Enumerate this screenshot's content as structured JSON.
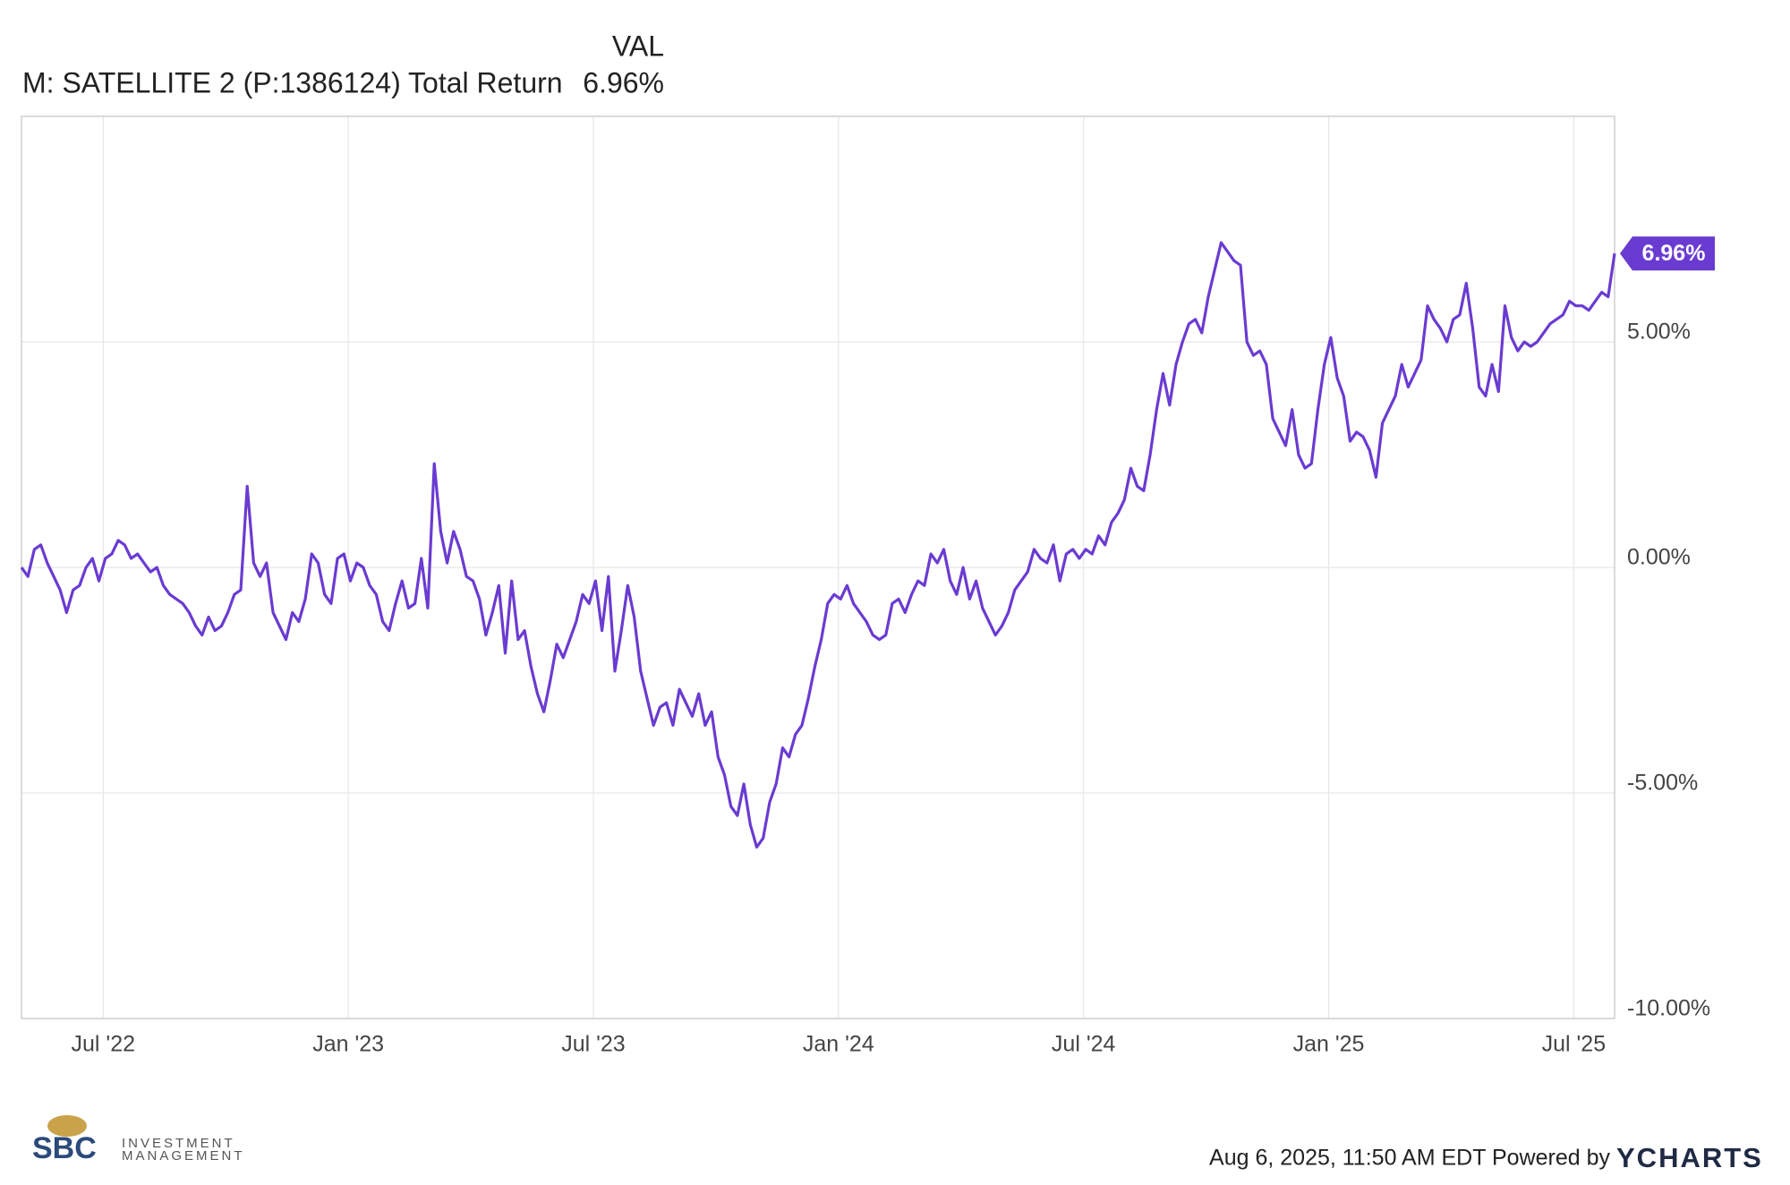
{
  "chart_data": {
    "type": "line",
    "legend": {
      "header": "VAL",
      "last_value": 6.96,
      "last_value_label": "6.96%"
    },
    "xlim": [
      "2022-05",
      "2025-08"
    ],
    "xticks": [
      {
        "value": "2022-07",
        "label": "Jul '22"
      },
      {
        "value": "2023-01",
        "label": "Jan '23"
      },
      {
        "value": "2023-07",
        "label": "Jul '23"
      },
      {
        "value": "2024-01",
        "label": "Jan '24"
      },
      {
        "value": "2024-07",
        "label": "Jul '24"
      },
      {
        "value": "2025-01",
        "label": "Jan '25"
      },
      {
        "value": "2025-07",
        "label": "Jul '25"
      }
    ],
    "ylim": [
      -10,
      10
    ],
    "yticks": [
      {
        "value": -10,
        "label": "-10.00%"
      },
      {
        "value": -5,
        "label": "-5.00%"
      },
      {
        "value": 0,
        "label": "0.00%"
      },
      {
        "value": 5,
        "label": "5.00%"
      }
    ],
    "grid": true,
    "series": [
      {
        "name": "M: SATELLITE 2 (P:1386124) Total Return",
        "color": "#6a3bd1",
        "values": [
          0,
          -0.2,
          0.4,
          0.5,
          0.1,
          -0.2,
          -0.5,
          -1.0,
          -0.5,
          -0.4,
          0,
          0.2,
          -0.3,
          0.2,
          0.3,
          0.6,
          0.5,
          0.2,
          0.3,
          0.1,
          -0.1,
          0,
          -0.4,
          -0.6,
          -0.7,
          -0.8,
          -1.0,
          -1.3,
          -1.5,
          -1.1,
          -1.4,
          -1.3,
          -1.0,
          -0.6,
          -0.5,
          1.8,
          0.1,
          -0.2,
          0.1,
          -1.0,
          -1.3,
          -1.6,
          -1.0,
          -1.2,
          -0.7,
          0.3,
          0.1,
          -0.6,
          -0.8,
          0.2,
          0.3,
          -0.3,
          0.1,
          0.0,
          -0.4,
          -0.6,
          -1.2,
          -1.4,
          -0.8,
          -0.3,
          -0.9,
          -0.8,
          0.2,
          -0.9,
          2.3,
          0.8,
          0.1,
          0.8,
          0.4,
          -0.2,
          -0.3,
          -0.7,
          -1.5,
          -1.0,
          -0.4,
          -1.9,
          -0.3,
          -1.6,
          -1.4,
          -2.2,
          -2.8,
          -3.2,
          -2.5,
          -1.7,
          -2.0,
          -1.6,
          -1.2,
          -0.6,
          -0.8,
          -0.3,
          -1.4,
          -0.2,
          -2.3,
          -1.4,
          -0.4,
          -1.1,
          -2.3,
          -2.9,
          -3.5,
          -3.1,
          -3.0,
          -3.5,
          -2.7,
          -3.0,
          -3.3,
          -2.8,
          -3.5,
          -3.2,
          -4.2,
          -4.6,
          -5.3,
          -5.5,
          -4.8,
          -5.7,
          -6.2,
          -6.0,
          -5.2,
          -4.8,
          -4.0,
          -4.2,
          -3.7,
          -3.5,
          -2.9,
          -2.2,
          -1.6,
          -0.8,
          -0.6,
          -0.7,
          -0.4,
          -0.8,
          -1.0,
          -1.2,
          -1.5,
          -1.6,
          -1.5,
          -0.8,
          -0.7,
          -1.0,
          -0.6,
          -0.3,
          -0.4,
          0.3,
          0.1,
          0.4,
          -0.3,
          -0.6,
          0.0,
          -0.7,
          -0.3,
          -0.9,
          -1.2,
          -1.5,
          -1.3,
          -1.0,
          -0.5,
          -0.3,
          -0.1,
          0.4,
          0.2,
          0.1,
          0.5,
          -0.3,
          0.3,
          0.4,
          0.2,
          0.4,
          0.3,
          0.7,
          0.5,
          1.0,
          1.2,
          1.5,
          2.2,
          1.8,
          1.7,
          2.5,
          3.5,
          4.3,
          3.6,
          4.5,
          5.0,
          5.4,
          5.5,
          5.2,
          6.0,
          6.6,
          7.2,
          7.0,
          6.8,
          6.7,
          5.0,
          4.7,
          4.8,
          4.5,
          3.3,
          3.0,
          2.7,
          3.5,
          2.5,
          2.2,
          2.3,
          3.5,
          4.5,
          5.1,
          4.2,
          3.8,
          2.8,
          3.0,
          2.9,
          2.6,
          2.0,
          3.2,
          3.5,
          3.8,
          4.5,
          4.0,
          4.3,
          4.6,
          5.8,
          5.5,
          5.3,
          5.0,
          5.5,
          5.6,
          6.3,
          5.3,
          4.0,
          3.8,
          4.5,
          3.9,
          5.8,
          5.1,
          4.8,
          5.0,
          4.9,
          5.0,
          5.2,
          5.4,
          5.5,
          5.6,
          5.9,
          5.8,
          5.8,
          5.7,
          5.9,
          6.1,
          6.0,
          6.96
        ]
      }
    ]
  },
  "footer": {
    "timestamp": "Aug 6, 2025, 11:50 AM EDT Powered by",
    "brand": "YCHARTS",
    "logo": {
      "name": "SBC",
      "line1": "INVESTMENT",
      "line2": "MANAGEMENT"
    }
  }
}
